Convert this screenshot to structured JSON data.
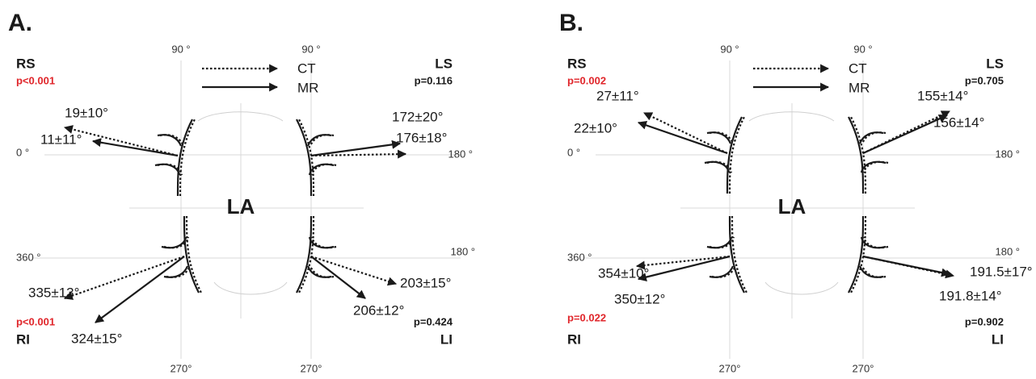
{
  "panels": [
    {
      "label": "A.",
      "center": "LA",
      "legend": {
        "ct": "CT",
        "mr": "MR"
      },
      "angles": {
        "top_left": "90 °",
        "top_right": "90 °",
        "left": "0 °",
        "right": "180 °",
        "lower_left": "360 °",
        "lower_right": "180 °",
        "bottom_left": "270°",
        "bottom_right": "270°"
      },
      "veins": [
        {
          "name": "RS",
          "p": "p<0.001",
          "p_color": "#e0262b",
          "ct": "19±10°",
          "mr": "11±11°"
        },
        {
          "name": "LS",
          "p": "p=0.116",
          "p_color": "#1a1a1a",
          "ct": "176±18°",
          "mr": "172±20°"
        },
        {
          "name": "RI",
          "p": "p<0.001",
          "p_color": "#e0262b",
          "ct": "335±13°",
          "mr": "324±15°"
        },
        {
          "name": "LI",
          "p": "p=0.424",
          "p_color": "#1a1a1a",
          "ct": "203±15°",
          "mr": "206±12°"
        }
      ]
    },
    {
      "label": "B.",
      "center": "LA",
      "legend": {
        "ct": "CT",
        "mr": "MR"
      },
      "angles": {
        "top_left": "90 °",
        "top_right": "90 °",
        "left": "0 °",
        "right": "180 °",
        "lower_left": "360 °",
        "lower_right": "180 °",
        "bottom_left": "270°",
        "bottom_right": "270°"
      },
      "veins": [
        {
          "name": "RS",
          "p": "p=0.002",
          "p_color": "#e0262b",
          "ct": "27±11°",
          "mr": "22±10°"
        },
        {
          "name": "LS",
          "p": "p=0.705",
          "p_color": "#1a1a1a",
          "ct": "156±14°",
          "mr": "155±14°"
        },
        {
          "name": "RI",
          "p": "p=0.022",
          "p_color": "#e0262b",
          "ct": "354±10°",
          "mr": "350±12°"
        },
        {
          "name": "LI",
          "p": "p=0.902",
          "p_color": "#1a1a1a",
          "ct": "191.5±17°",
          "mr": "191.8±14°"
        }
      ]
    }
  ]
}
